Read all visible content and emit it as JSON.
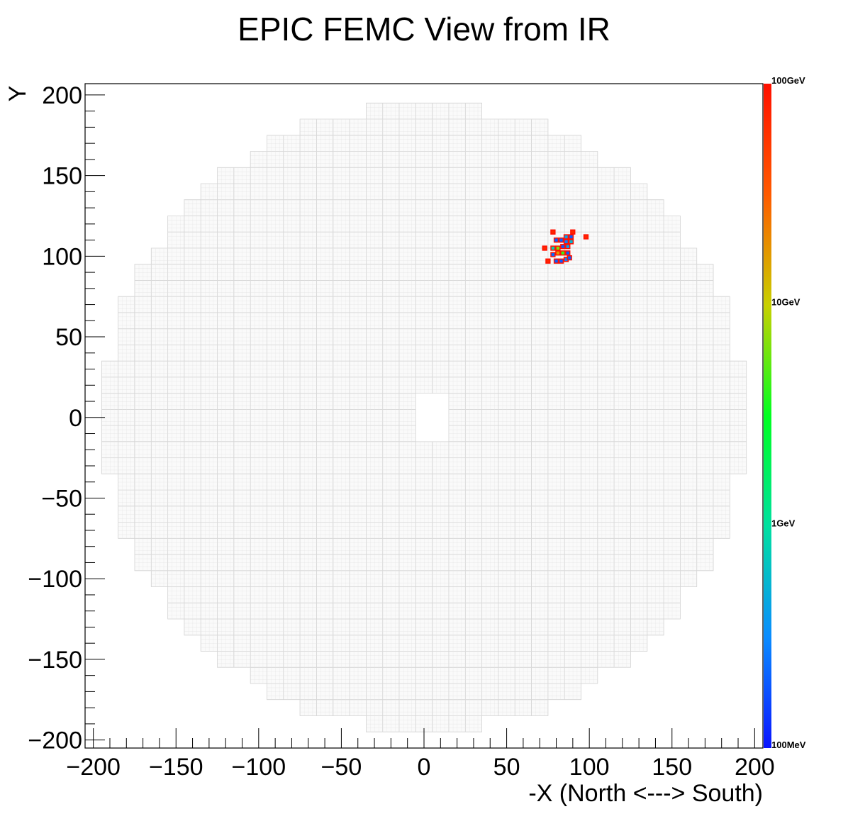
{
  "title": "EPIC FEMC View from IR",
  "chart_data": {
    "type": "heatmap",
    "title": "EPIC FEMC View from IR",
    "xlabel": "-X (North <---> South)",
    "ylabel": "Y",
    "xlim": [
      -205,
      205
    ],
    "ylim": [
      -205,
      207
    ],
    "xticks": [
      -200,
      -150,
      -100,
      -50,
      0,
      50,
      100,
      150,
      200
    ],
    "yticks": [
      -200,
      -150,
      -100,
      -50,
      0,
      50,
      100,
      150,
      200
    ],
    "xtick_labels": [
      "−200",
      "−150",
      "−100",
      "−50",
      "0",
      "50",
      "100",
      "150",
      "200"
    ],
    "ytick_labels": [
      "−200",
      "−150",
      "−100",
      "−50",
      "0",
      "50",
      "100",
      "150",
      "200"
    ],
    "z_scale": "log",
    "z_range": [
      "100MeV",
      "100GeV"
    ],
    "palette_labels": [
      "100GeV",
      "10GeV",
      "1GeV",
      "100MeV"
    ],
    "palette_colors": [
      "#0a14ff",
      "#0a8cff",
      "#00e0a0",
      "#00ff20",
      "#c8d000",
      "#ff5a00",
      "#ff1000"
    ],
    "detector": {
      "outer_radius": 195,
      "beam_hole": [
        -8,
        20,
        -15,
        15
      ],
      "cell_outline_color": "#d0d0d0"
    },
    "hits": [
      {
        "x": 78,
        "y": 115,
        "level": 0.95
      },
      {
        "x": 90,
        "y": 115,
        "level": 0.95
      },
      {
        "x": 98,
        "y": 112,
        "level": 0.95
      },
      {
        "x": 73,
        "y": 105,
        "level": 0.95
      },
      {
        "x": 80,
        "y": 110,
        "level": 0.1
      },
      {
        "x": 83,
        "y": 110,
        "level": 0.1
      },
      {
        "x": 86,
        "y": 112,
        "level": 0.2
      },
      {
        "x": 89,
        "y": 112,
        "level": 0.1
      },
      {
        "x": 86,
        "y": 109,
        "level": 0.15
      },
      {
        "x": 89,
        "y": 109,
        "level": 0.25
      },
      {
        "x": 78,
        "y": 105,
        "level": 0.3
      },
      {
        "x": 81,
        "y": 105,
        "level": 0.6
      },
      {
        "x": 84,
        "y": 106,
        "level": 0.1
      },
      {
        "x": 87,
        "y": 106,
        "level": 0.2
      },
      {
        "x": 81,
        "y": 102,
        "level": 0.75
      },
      {
        "x": 84,
        "y": 102,
        "level": 0.55
      },
      {
        "x": 87,
        "y": 102,
        "level": 0.1
      },
      {
        "x": 78,
        "y": 101,
        "level": 0.12
      },
      {
        "x": 75,
        "y": 97,
        "level": 0.95
      },
      {
        "x": 80,
        "y": 97,
        "level": 0.1
      },
      {
        "x": 83,
        "y": 97,
        "level": 0.1
      },
      {
        "x": 86,
        "y": 98,
        "level": 0.15
      },
      {
        "x": 88,
        "y": 99,
        "level": 0.1
      }
    ]
  }
}
